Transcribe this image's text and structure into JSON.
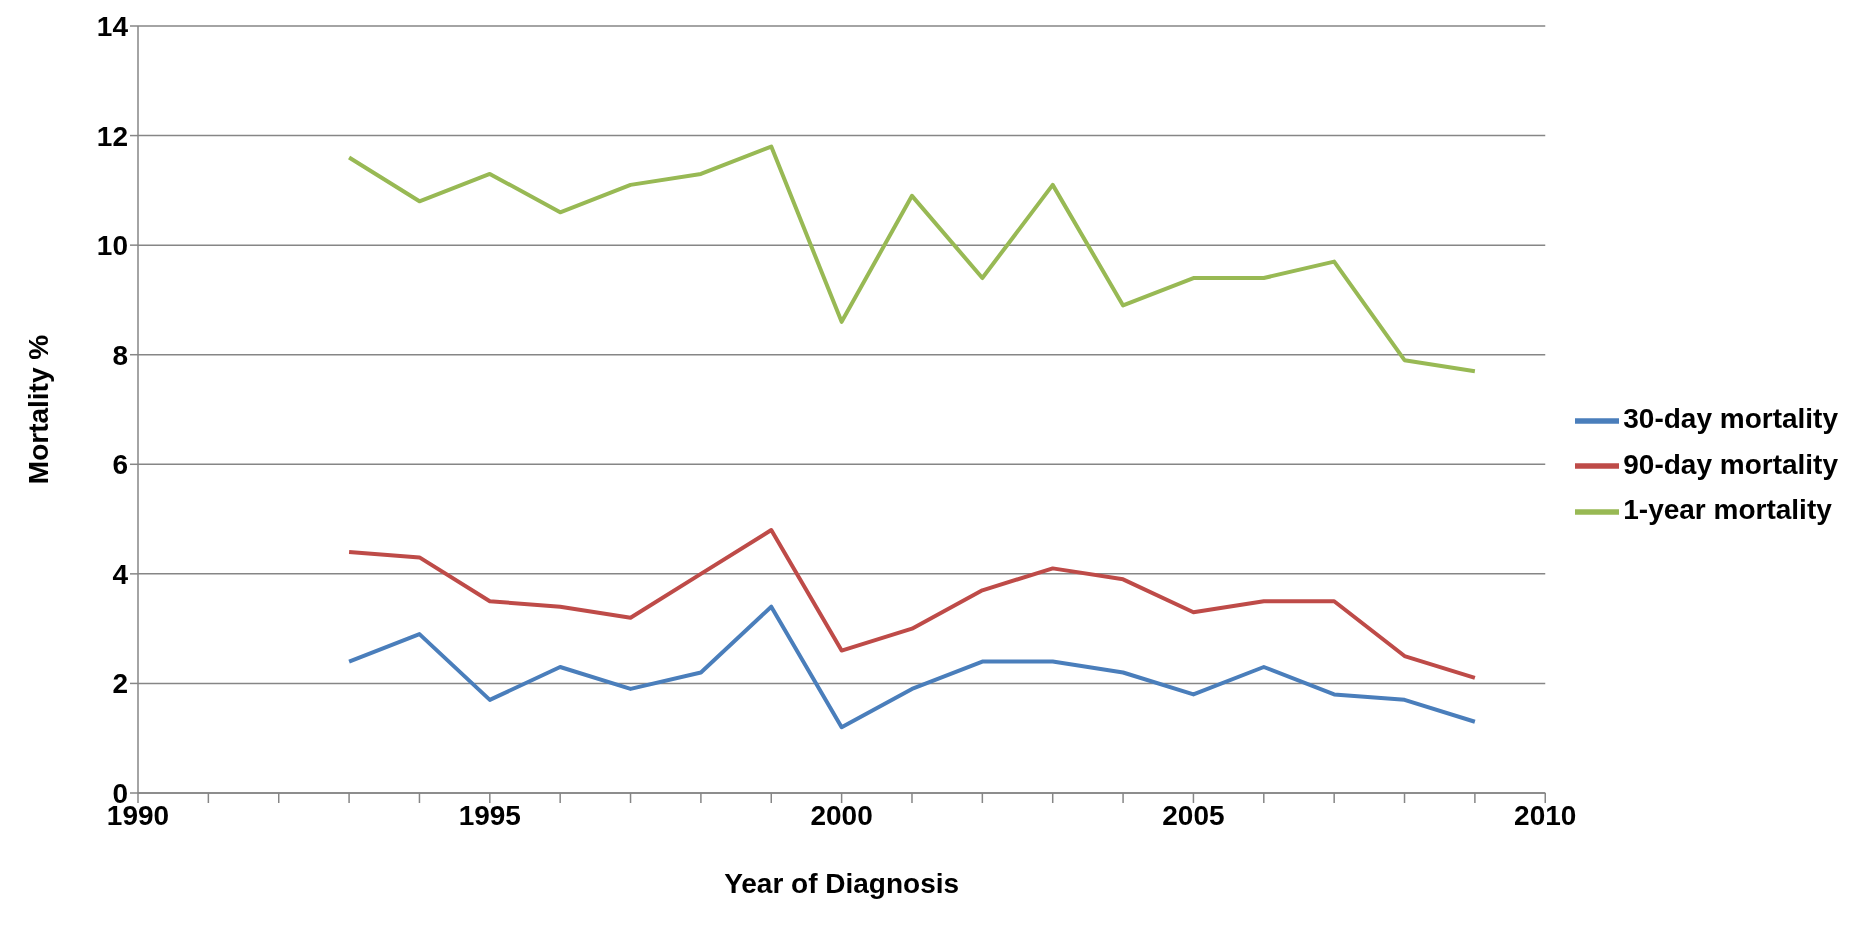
{
  "chart_data": {
    "type": "line",
    "xlabel": "Year of Diagnosis",
    "ylabel": "Mortality %",
    "x": [
      1993,
      1994,
      1995,
      1996,
      1997,
      1998,
      1999,
      2000,
      2001,
      2002,
      2003,
      2004,
      2005,
      2006,
      2007,
      2008,
      2009
    ],
    "series": [
      {
        "name": "30-day mortality",
        "color": "#4a7ebb",
        "values": [
          2.4,
          2.9,
          1.7,
          2.3,
          1.9,
          2.2,
          3.4,
          1.2,
          1.9,
          2.4,
          2.4,
          2.2,
          1.8,
          2.3,
          1.8,
          1.7,
          1.3
        ]
      },
      {
        "name": "90-day mortality",
        "color": "#be4b48",
        "values": [
          4.4,
          4.3,
          3.5,
          3.4,
          3.2,
          4.0,
          4.8,
          2.6,
          3.0,
          3.7,
          4.1,
          3.9,
          3.3,
          3.5,
          3.5,
          2.5,
          2.1
        ]
      },
      {
        "name": "1-year mortality",
        "color": "#98b954",
        "values": [
          11.6,
          10.8,
          11.3,
          10.6,
          11.1,
          11.3,
          11.8,
          8.6,
          10.9,
          9.4,
          11.1,
          8.9,
          9.4,
          9.4,
          9.7,
          7.9,
          7.7
        ]
      }
    ],
    "xlim": [
      1990,
      2010
    ],
    "xticks": [
      1990,
      {
        "value": 1991,
        "label": null
      },
      {
        "value": 1992,
        "label": null
      },
      {
        "value": 1993,
        "label": null
      },
      {
        "value": 1994,
        "label": null
      },
      1995,
      {
        "value": 1996,
        "label": null
      },
      {
        "value": 1997,
        "label": null
      },
      {
        "value": 1998,
        "label": null
      },
      {
        "value": 1999,
        "label": null
      },
      2000,
      {
        "value": 2001,
        "label": null
      },
      {
        "value": 2002,
        "label": null
      },
      {
        "value": 2003,
        "label": null
      },
      {
        "value": 2004,
        "label": null
      },
      2005,
      {
        "value": 2006,
        "label": null
      },
      {
        "value": 2007,
        "label": null
      },
      {
        "value": 2008,
        "label": null
      },
      {
        "value": 2009,
        "label": null
      },
      2010
    ],
    "ylim": [
      0,
      14
    ],
    "yticks": [
      0,
      2,
      4,
      6,
      8,
      10,
      12,
      14
    ],
    "grid": "y",
    "legend": "right",
    "marker": "none",
    "line_style": "solid"
  }
}
